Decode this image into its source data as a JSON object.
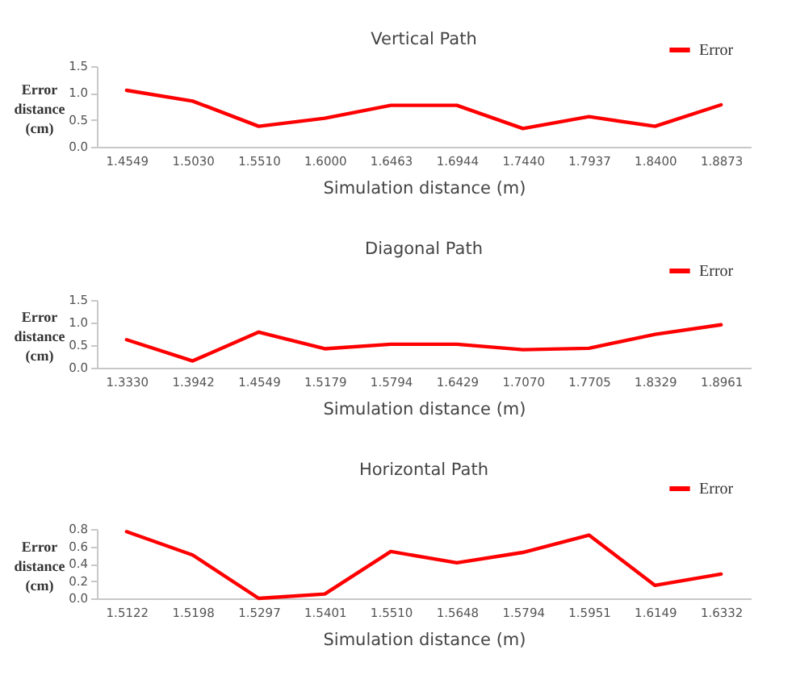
{
  "chart_data": [
    {
      "type": "line",
      "title": "Vertical Path",
      "xlabel": "Simulation distance (m)",
      "ylabel": "Error distance (cm)",
      "categories": [
        "1.4549",
        "1.5030",
        "1.5510",
        "1.6000",
        "1.6463",
        "1.6944",
        "1.7440",
        "1.7937",
        "1.8400",
        "1.8873"
      ],
      "series": [
        {
          "name": "Error",
          "color": "#ff0000",
          "values": [
            1.05,
            0.85,
            0.38,
            0.53,
            0.77,
            0.77,
            0.34,
            0.56,
            0.38,
            0.78
          ]
        }
      ],
      "ylim": [
        0,
        1.5
      ],
      "yticks": [
        {
          "value": 0,
          "label": "0.0"
        },
        {
          "value": 0.5,
          "label": "0.5"
        },
        {
          "value": 1,
          "label": "1.0"
        },
        {
          "value": 1.5,
          "label": "1.5"
        }
      ],
      "legend": "top right"
    },
    {
      "type": "line",
      "title": "Diagonal Path",
      "xlabel": "Simulation distance (m)",
      "ylabel": "Error distance (cm)",
      "categories": [
        "1.3330",
        "1.3942",
        "1.4549",
        "1.5179",
        "1.5794",
        "1.6429",
        "1.7070",
        "1.7705",
        "1.8329",
        "1.8961"
      ],
      "series": [
        {
          "name": "Error",
          "color": "#ff0000",
          "values": [
            0.62,
            0.15,
            0.79,
            0.42,
            0.52,
            0.52,
            0.4,
            0.43,
            0.74,
            0.95
          ]
        }
      ],
      "ylim": [
        0,
        1.5
      ],
      "yticks": [
        {
          "value": 0,
          "label": "0.0"
        },
        {
          "value": 0.5,
          "label": "0.5"
        },
        {
          "value": 1,
          "label": "1.0"
        },
        {
          "value": 1.5,
          "label": "1.5"
        }
      ],
      "legend": "top right"
    },
    {
      "type": "line",
      "title": "Horizontal Path",
      "xlabel": "Simulation distance (m)",
      "ylabel": "Error distance (cm)",
      "categories": [
        "1.5122",
        "1.5198",
        "1.5297",
        "1.5401",
        "1.5510",
        "1.5648",
        "1.5794",
        "1.5951",
        "1.6149",
        "1.6332"
      ],
      "series": [
        {
          "name": "Error",
          "color": "#ff0000",
          "values": [
            0.77,
            0.5,
            0.0,
            0.05,
            0.54,
            0.41,
            0.53,
            0.73,
            0.15,
            0.28
          ]
        }
      ],
      "ylim": [
        0,
        0.8
      ],
      "yticks": [
        {
          "value": 0,
          "label": "0.0"
        },
        {
          "value": 0.2,
          "label": "0.2"
        },
        {
          "value": 0.4,
          "label": "0.4"
        },
        {
          "value": 0.6,
          "label": "0.6"
        },
        {
          "value": 0.8,
          "label": "0.8"
        }
      ],
      "legend": "top right"
    }
  ]
}
